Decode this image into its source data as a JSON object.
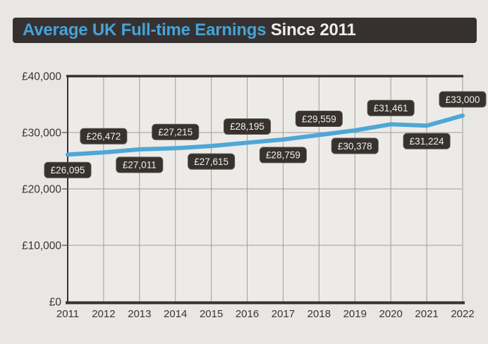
{
  "title": {
    "highlight": "Average UK Full-time Earnings",
    "rest": " Since 2011"
  },
  "colors": {
    "background": "#e9e7e4",
    "plot_background": "#edebe8",
    "title_bar_bg": "#363130",
    "title_highlight": "#45a3d8",
    "title_rest": "#efedeb",
    "line": "#4ea7d7",
    "grid": "#a09c98",
    "axis": "#38322e",
    "tick_text": "#3a342f",
    "label_bg": "#38322f",
    "label_border": "#56504b",
    "label_text": "#f1efec"
  },
  "chart_data": {
    "type": "line",
    "title": "Average UK Full-time Earnings Since 2011",
    "x": [
      "2011",
      "2012",
      "2013",
      "2014",
      "2015",
      "2016",
      "2017",
      "2018",
      "2019",
      "2020",
      "2021",
      "2022"
    ],
    "values": [
      26095,
      26472,
      27011,
      27215,
      27615,
      28195,
      28759,
      29559,
      30378,
      31461,
      31224,
      33000
    ],
    "value_labels": [
      "£26,095",
      "£26,472",
      "£27,011",
      "£27,215",
      "£27,615",
      "£28,195",
      "£28,759",
      "£29,559",
      "£30,378",
      "£31,461",
      "£31,224",
      "£33,000"
    ],
    "label_placement": [
      "below",
      "above",
      "below",
      "above",
      "below",
      "above",
      "below",
      "above",
      "below",
      "above",
      "below",
      "above"
    ],
    "xlabel": "",
    "ylabel": "",
    "ylim": [
      0,
      40000
    ],
    "y_tick_values": [
      0,
      10000,
      20000,
      30000,
      40000
    ],
    "y_tick_labels": [
      "£0",
      "£10,000",
      "£20,000",
      "£30,000",
      "£40,000"
    ],
    "grid": true,
    "legend": "none"
  }
}
